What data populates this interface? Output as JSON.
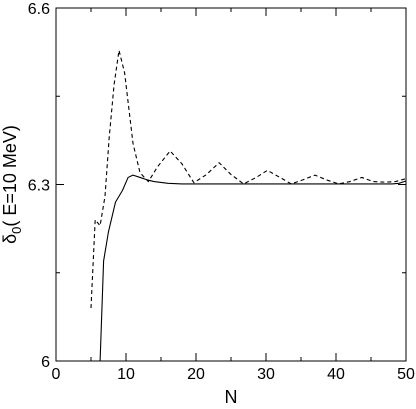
{
  "chart_data": {
    "type": "line",
    "title": "",
    "xlabel": "N",
    "ylabel": {
      "prefix": "δ",
      "subscript": "0",
      "suffix": "( E=10 MeV)"
    },
    "xlim": [
      0,
      50
    ],
    "ylim": [
      6.0,
      6.6
    ],
    "xticks": [
      0,
      10,
      20,
      30,
      40,
      50
    ],
    "yticks": [
      6,
      6.3,
      6.6
    ],
    "xtick_labels": [
      "0",
      "10",
      "20",
      "30",
      "40",
      "50"
    ],
    "ytick_labels": [
      "6",
      "6.3",
      "6.6"
    ],
    "grid": false,
    "legend": "none",
    "series": [
      {
        "style": "solid",
        "color": "#000000",
        "x": [
          6.3,
          6.8,
          7.5,
          8.5,
          9.5,
          10.3,
          11,
          12,
          13,
          14,
          16,
          18,
          20,
          25,
          30,
          35,
          40,
          45,
          48,
          49,
          50
        ],
        "y": [
          6.0,
          6.17,
          6.22,
          6.27,
          6.29,
          6.312,
          6.316,
          6.312,
          6.308,
          6.305,
          6.302,
          6.301,
          6.301,
          6.301,
          6.301,
          6.301,
          6.301,
          6.301,
          6.301,
          6.302,
          6.306
        ]
      },
      {
        "style": "dashed",
        "color": "#000000",
        "x": [
          5,
          5.6,
          6.3,
          7.0,
          7.6,
          8.3,
          9.0,
          9.8,
          11,
          12,
          13.2,
          14.5,
          16.3,
          18,
          19.7,
          21.5,
          23.3,
          25,
          26.8,
          28.6,
          30.2,
          32,
          33.6,
          35.3,
          37,
          38.6,
          40.4,
          42,
          43.7,
          45.3,
          47,
          48.5,
          50
        ],
        "y": [
          6.09,
          6.24,
          6.23,
          6.28,
          6.38,
          6.47,
          6.528,
          6.49,
          6.37,
          6.32,
          6.305,
          6.33,
          6.357,
          6.335,
          6.303,
          6.317,
          6.337,
          6.317,
          6.301,
          6.312,
          6.324,
          6.312,
          6.301,
          6.308,
          6.316,
          6.308,
          6.301,
          6.305,
          6.312,
          6.305,
          6.304,
          6.305,
          6.31
        ]
      }
    ]
  }
}
